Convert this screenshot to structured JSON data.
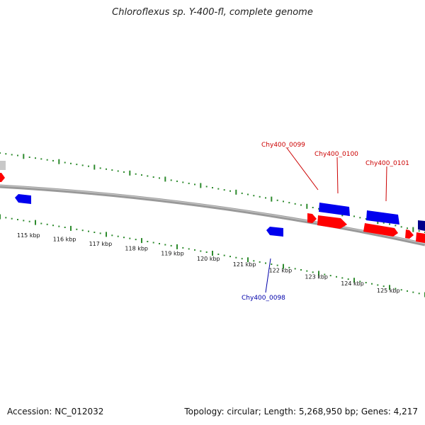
{
  "title": "Chloroflexus sp. Y-400-fl, complete genome",
  "footer": {
    "accession": "Accession: NC_012032",
    "summary": "Topology: circular; Length: 5,268,950 bp; Genes: 4,217"
  },
  "colors": {
    "backbone": "#8a8a8a",
    "ticks": "#2e8b2e",
    "forward_gene": "#ff0000",
    "reverse_gene": "#0000ee",
    "forward_label": "#cc0000",
    "reverse_label": "#0000aa",
    "other_gene": "#c8c8c8"
  },
  "scale": {
    "unit": "kbp",
    "labels": [
      "115 kbp",
      "116 kbp",
      "117 kbp",
      "118 kbp",
      "119 kbp",
      "120 kbp",
      "121 kbp",
      "122 kbp",
      "123 kbp",
      "124 kbp",
      "125 kbp"
    ]
  },
  "gene_labels": [
    {
      "text": "Chy400_0099",
      "strand": "forward"
    },
    {
      "text": "Chy400_0100",
      "strand": "forward"
    },
    {
      "text": "Chy400_0101",
      "strand": "forward"
    },
    {
      "text": "Chy400_0098",
      "strand": "reverse"
    }
  ]
}
